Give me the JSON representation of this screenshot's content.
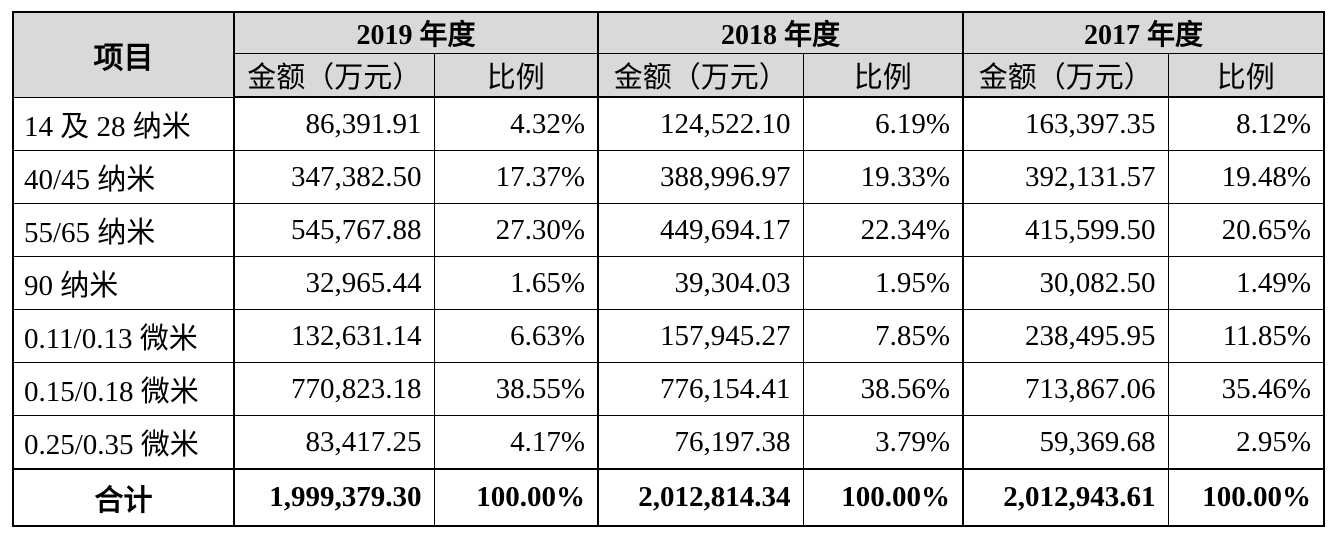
{
  "header": {
    "item_label": "项目",
    "years": [
      "2019 年度",
      "2018 年度",
      "2017 年度"
    ],
    "amount_label": "金额（万元）",
    "ratio_label": "比例"
  },
  "rows": [
    {
      "label": "14 及 28 纳米",
      "values": [
        "86,391.91",
        "4.32%",
        "124,522.10",
        "6.19%",
        "163,397.35",
        "8.12%"
      ]
    },
    {
      "label": "40/45 纳米",
      "values": [
        "347,382.50",
        "17.37%",
        "388,996.97",
        "19.33%",
        "392,131.57",
        "19.48%"
      ]
    },
    {
      "label": "55/65 纳米",
      "values": [
        "545,767.88",
        "27.30%",
        "449,694.17",
        "22.34%",
        "415,599.50",
        "20.65%"
      ]
    },
    {
      "label": "90 纳米",
      "values": [
        "32,965.44",
        "1.65%",
        "39,304.03",
        "1.95%",
        "30,082.50",
        "1.49%"
      ]
    },
    {
      "label": "0.11/0.13 微米",
      "values": [
        "132,631.14",
        "6.63%",
        "157,945.27",
        "7.85%",
        "238,495.95",
        "11.85%"
      ]
    },
    {
      "label": "0.15/0.18 微米",
      "values": [
        "770,823.18",
        "38.55%",
        "776,154.41",
        "38.56%",
        "713,867.06",
        "35.46%"
      ]
    },
    {
      "label": "0.25/0.35 微米",
      "values": [
        "83,417.25",
        "4.17%",
        "76,197.38",
        "3.79%",
        "59,369.68",
        "2.95%"
      ]
    }
  ],
  "total": {
    "label": "合计",
    "values": [
      "1,999,379.30",
      "100.00%",
      "2,012,814.34",
      "100.00%",
      "2,012,943.61",
      "100.00%"
    ]
  }
}
